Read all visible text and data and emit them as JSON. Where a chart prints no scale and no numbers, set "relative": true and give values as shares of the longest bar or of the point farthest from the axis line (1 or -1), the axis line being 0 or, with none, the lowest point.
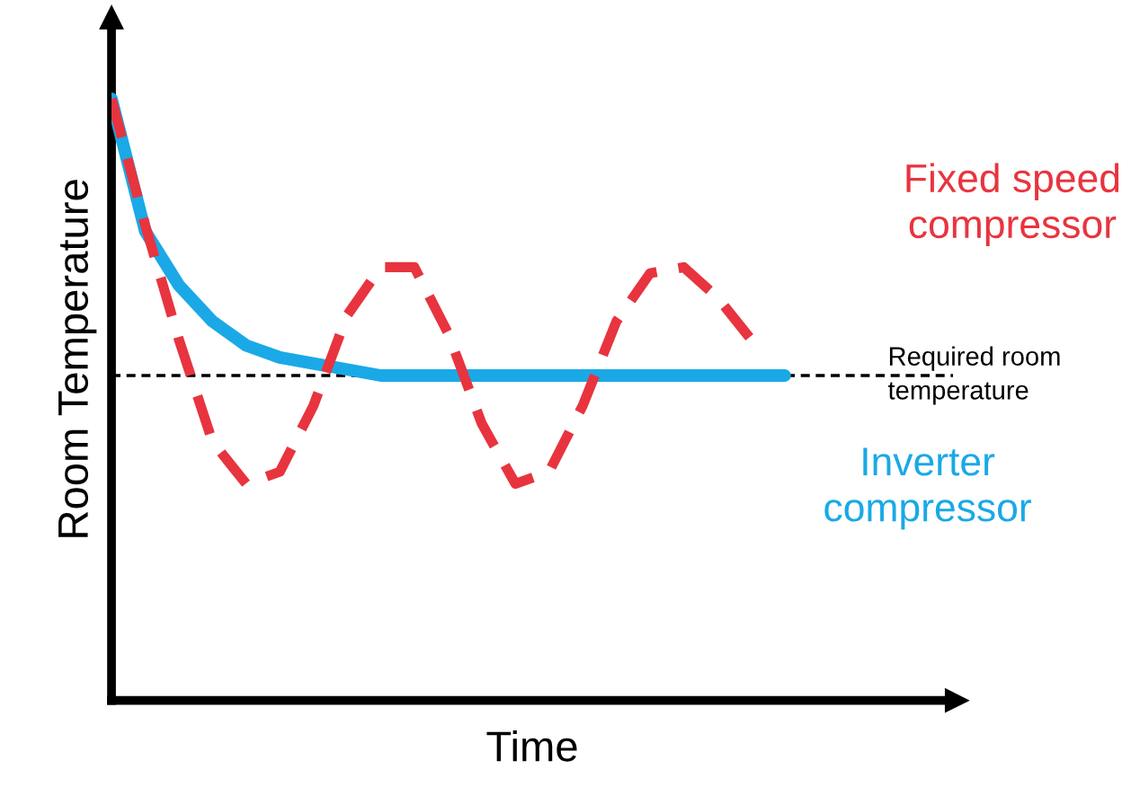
{
  "chart_data": {
    "type": "line",
    "relative": true,
    "xlabel": "Time",
    "ylabel": "Room Temperature",
    "categories": [
      null,
      null,
      null,
      null,
      null,
      null,
      null,
      null,
      null,
      null,
      null,
      null,
      null,
      null,
      null,
      null,
      null,
      null,
      null,
      null,
      null,
      null,
      null,
      null,
      null,
      null
    ],
    "series": [
      {
        "name": "Fixed speed compressor",
        "color": "#e8343f",
        "line_style": "dashed",
        "values": [
          1.0,
          0.79,
          0.6,
          0.43,
          0.36,
          0.38,
          0.49,
          0.64,
          0.72,
          0.72,
          0.61,
          0.46,
          0.36,
          0.38,
          0.49,
          0.63,
          0.71,
          0.72,
          0.67,
          0.6,
          null,
          null,
          null,
          null,
          null,
          null
        ]
      },
      {
        "name": "Inverter compressor",
        "color": "#1aa9e6",
        "line_style": "solid",
        "values": [
          1.0,
          0.78,
          0.69,
          0.63,
          0.59,
          0.57,
          0.56,
          0.55,
          0.54,
          0.54,
          0.54,
          0.54,
          0.54,
          0.54,
          0.54,
          0.54,
          0.54,
          0.54,
          0.54,
          0.54,
          0.54,
          null,
          null,
          null,
          null,
          null
        ]
      }
    ],
    "ref_lines": [
      {
        "axis": "y",
        "value": 0.54,
        "label": "Required room temperature",
        "color": "#000000",
        "line_style": "dashed"
      }
    ],
    "legend": false,
    "tick_labels": false
  }
}
